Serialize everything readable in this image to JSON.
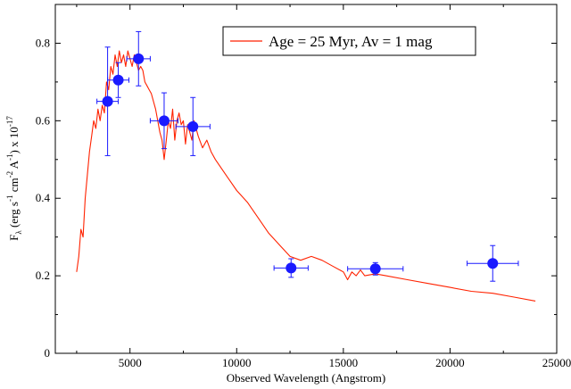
{
  "chart_data": {
    "type": "scatter",
    "xlabel": "Observed Wavelength (Angstrom)",
    "ylabel": {
      "base": "F",
      "sub": "λ",
      "units_open": " (erg s",
      "exp1": "-1",
      "mid1": " cm",
      "exp2": "-2",
      "mid2": " A",
      "exp3": "-1",
      "units_close": ")  x  10",
      "exp4": "-17"
    },
    "xlim": [
      1500,
      25000
    ],
    "ylim": [
      0,
      0.9
    ],
    "x_ticks": [
      5000,
      10000,
      15000,
      20000,
      25000
    ],
    "y_ticks": [
      0,
      0.2,
      0.4,
      0.6,
      0.8
    ],
    "x_tick_labels": [
      "5000",
      "10000",
      "15000",
      "20000",
      "25000"
    ],
    "y_tick_labels": [
      "0",
      "0.2",
      "0.4",
      "0.6",
      "0.8"
    ],
    "legend_position": "top-right",
    "series": [
      {
        "name": "Age = 25 Myr, Av = 1 mag",
        "kind": "line",
        "color": "#ff2200",
        "x": [
          2500,
          2600,
          2700,
          2800,
          2900,
          3000,
          3100,
          3200,
          3300,
          3400,
          3500,
          3600,
          3700,
          3800,
          3900,
          4000,
          4100,
          4200,
          4300,
          4400,
          4500,
          4600,
          4700,
          4800,
          4900,
          5000,
          5100,
          5200,
          5300,
          5400,
          5500,
          5600,
          5700,
          5800,
          5900,
          6000,
          6100,
          6200,
          6300,
          6400,
          6500,
          6600,
          6700,
          6800,
          6900,
          7000,
          7100,
          7200,
          7300,
          7400,
          7500,
          7600,
          7700,
          7800,
          7900,
          8000,
          8200,
          8400,
          8600,
          8800,
          9000,
          9500,
          10000,
          10500,
          11000,
          11500,
          12000,
          12500,
          13000,
          13500,
          14000,
          14500,
          15000,
          15200,
          15400,
          15600,
          15800,
          16000,
          16500,
          17000,
          18000,
          19000,
          20000,
          21000,
          22000,
          23000,
          24000
        ],
        "y": [
          0.21,
          0.25,
          0.32,
          0.3,
          0.4,
          0.46,
          0.52,
          0.56,
          0.6,
          0.58,
          0.63,
          0.6,
          0.64,
          0.62,
          0.7,
          0.68,
          0.74,
          0.72,
          0.77,
          0.74,
          0.78,
          0.75,
          0.77,
          0.74,
          0.78,
          0.76,
          0.74,
          0.77,
          0.75,
          0.73,
          0.74,
          0.73,
          0.7,
          0.69,
          0.68,
          0.67,
          0.65,
          0.63,
          0.6,
          0.57,
          0.55,
          0.5,
          0.55,
          0.6,
          0.58,
          0.63,
          0.55,
          0.6,
          0.62,
          0.59,
          0.6,
          0.54,
          0.59,
          0.57,
          0.55,
          0.6,
          0.56,
          0.53,
          0.55,
          0.52,
          0.5,
          0.46,
          0.42,
          0.39,
          0.35,
          0.31,
          0.28,
          0.25,
          0.24,
          0.25,
          0.24,
          0.225,
          0.21,
          0.19,
          0.21,
          0.2,
          0.215,
          0.2,
          0.205,
          0.2,
          0.19,
          0.18,
          0.17,
          0.16,
          0.155,
          0.145,
          0.135
        ]
      },
      {
        "name": "",
        "kind": "points",
        "color": "#1a1aff",
        "points": [
          {
            "x": 3950,
            "y": 0.65,
            "xerr": 500,
            "yerr": 0.14
          },
          {
            "x": 4450,
            "y": 0.705,
            "xerr": 500,
            "yerr": 0.045
          },
          {
            "x": 5400,
            "y": 0.76,
            "xerr": 550,
            "yerr": 0.07
          },
          {
            "x": 6600,
            "y": 0.6,
            "xerr": 650,
            "yerr": 0.072
          },
          {
            "x": 7950,
            "y": 0.585,
            "xerr": 800,
            "yerr": 0.075
          },
          {
            "x": 12550,
            "y": 0.22,
            "xerr": 800,
            "yerr": 0.024
          },
          {
            "x": 16500,
            "y": 0.218,
            "xerr": 1300,
            "yerr": 0.016
          },
          {
            "x": 22000,
            "y": 0.232,
            "xerr": 1200,
            "yerr": 0.046
          }
        ]
      }
    ]
  }
}
